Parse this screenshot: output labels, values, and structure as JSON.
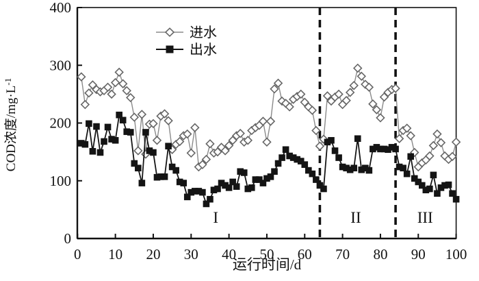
{
  "chart_data": {
    "type": "line",
    "title": "",
    "xlabel": "运行时间/d",
    "ylabel": "COD浓度/mg·L⁻¹",
    "ylabel_main": "COD浓度/mg·L",
    "ylabel_sup": "-1",
    "xlim": [
      0,
      100
    ],
    "ylim": [
      0,
      400
    ],
    "x_ticks": [
      0,
      10,
      20,
      30,
      40,
      50,
      60,
      70,
      80,
      90,
      100
    ],
    "y_ticks": [
      0,
      100,
      200,
      300,
      400
    ],
    "grid": "off",
    "legend_position": "top-center-inside",
    "x_start": 1,
    "x_step": 1,
    "vlines": [
      {
        "x": 64,
        "style": "dashed",
        "color": "#111111"
      },
      {
        "x": 84,
        "style": "dashed",
        "color": "#111111"
      }
    ],
    "annotations": [
      {
        "text": "I",
        "x": 36.5,
        "y": 37
      },
      {
        "text": "II",
        "x": 73.5,
        "y": 37
      },
      {
        "text": "III",
        "x": 91.8,
        "y": 37
      }
    ],
    "series": [
      {
        "name": "进水",
        "marker": "diamond-open",
        "line_color": "#8a8a8a",
        "marker_stroke": "#666666",
        "marker_fill": "#ffffff",
        "values": [
          280,
          232,
          252,
          266,
          258,
          254,
          256,
          262,
          250,
          270,
          288,
          268,
          256,
          244,
          210,
          152,
          215,
          146,
          198,
          199,
          170,
          212,
          216,
          204,
          154,
          163,
          168,
          178,
          181,
          148,
          192,
          124,
          128,
          137,
          164,
          148,
          150,
          158,
          152,
          161,
          170,
          178,
          182,
          167,
          170,
          187,
          192,
          196,
          203,
          167,
          203,
          259,
          269,
          238,
          234,
          228,
          241,
          246,
          250,
          236,
          228,
          222,
          187,
          160,
          172,
          247,
          238,
          245,
          250,
          232,
          239,
          253,
          265,
          295,
          281,
          267,
          262,
          233,
          223,
          209,
          245,
          253,
          258,
          260,
          173,
          187,
          191,
          178,
          149,
          124,
          131,
          136,
          143,
          161,
          181,
          166,
          143,
          137,
          142,
          167
        ]
      },
      {
        "name": "出水",
        "marker": "square-filled",
        "line_color": "#141414",
        "marker_stroke": "#141414",
        "marker_fill": "#141414",
        "values": [
          165,
          163,
          199,
          151,
          194,
          149,
          168,
          193,
          172,
          170,
          214,
          205,
          185,
          184,
          130,
          122,
          96,
          184,
          152,
          149,
          106,
          107,
          107,
          160,
          124,
          118,
          98,
          96,
          72,
          80,
          82,
          82,
          80,
          60,
          68,
          84,
          86,
          96,
          92,
          88,
          98,
          90,
          116,
          114,
          86,
          88,
          102,
          102,
          96,
          104,
          107,
          116,
          130,
          140,
          154,
          143,
          140,
          137,
          134,
          128,
          118,
          112,
          102,
          92,
          86,
          167,
          170,
          152,
          140,
          124,
          122,
          119,
          122,
          173,
          119,
          122,
          118,
          155,
          158,
          155,
          155,
          154,
          158,
          155,
          124,
          122,
          112,
          142,
          104,
          98,
          92,
          84,
          86,
          110,
          78,
          88,
          92,
          93,
          78,
          68
        ]
      }
    ]
  }
}
